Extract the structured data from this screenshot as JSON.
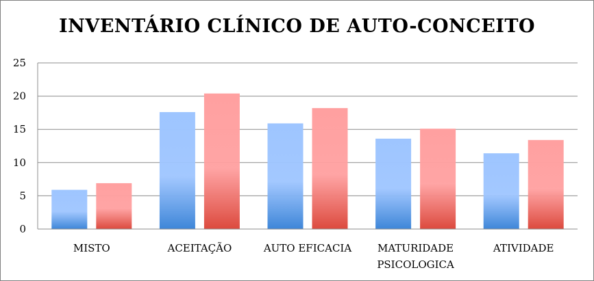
{
  "chart_data": {
    "type": "bar",
    "title": "INVENTÁRIO CLÍNICO DE AUTO-CONCEITO",
    "categories": [
      "MISTO",
      "ACEITAÇÃO",
      "AUTO EFICACIA",
      "MATURIDADE PSICOLOGICA",
      "ATIVIDADE"
    ],
    "category_lines": [
      [
        "MISTO"
      ],
      [
        "ACEITAÇÃO"
      ],
      [
        "AUTO EFICACIA"
      ],
      [
        "MATURIDADE",
        "PSICOLOGICA"
      ],
      [
        "ATIVIDADE"
      ]
    ],
    "series": [
      {
        "values": [
          5.9,
          17.6,
          15.9,
          13.6,
          11.4
        ],
        "color_top": "#9ec5ff",
        "color_bottom": "#3e86d8"
      },
      {
        "values": [
          6.9,
          20.4,
          18.2,
          15.1,
          13.4
        ],
        "color_top": "#ffa0a0",
        "color_bottom": "#dc4a3e"
      }
    ],
    "ylim": [
      0,
      25
    ],
    "yticks": [
      0,
      5,
      10,
      15,
      20,
      25
    ],
    "grid": true,
    "legend": "none"
  }
}
